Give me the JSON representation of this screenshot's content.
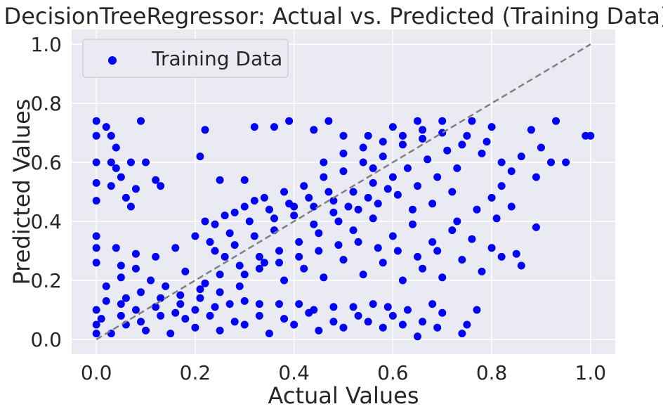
{
  "chart_data": {
    "type": "scatter",
    "title": "DecisionTreeRegressor: Actual vs. Predicted (Training Data)",
    "xlabel": "Actual Values",
    "ylabel": "Predicted Values",
    "xlim": [
      -0.05,
      1.05
    ],
    "ylim": [
      -0.05,
      1.05
    ],
    "xticks": [
      0.0,
      0.2,
      0.4,
      0.6,
      0.8,
      1.0
    ],
    "yticks": [
      0.0,
      0.2,
      0.4,
      0.6,
      0.8,
      1.0
    ],
    "xtick_labels": [
      "0.0",
      "0.2",
      "0.4",
      "0.6",
      "0.8",
      "1.0"
    ],
    "ytick_labels": [
      "0.0",
      "0.2",
      "0.4",
      "0.6",
      "0.8",
      "1.0"
    ],
    "grid": true,
    "legend_position": "top-left",
    "series": [
      {
        "name": "Training Data",
        "color": "#0000ff",
        "points": [
          [
            0.0,
            0.74
          ],
          [
            0.0,
            0.69
          ],
          [
            0.0,
            0.6
          ],
          [
            0.0,
            0.53
          ],
          [
            0.0,
            0.47
          ],
          [
            0.0,
            0.35
          ],
          [
            0.0,
            0.31
          ],
          [
            0.0,
            0.26
          ],
          [
            0.02,
            0.72
          ],
          [
            0.03,
            0.69
          ],
          [
            0.04,
            0.65
          ],
          [
            0.03,
            0.6
          ],
          [
            0.04,
            0.58
          ],
          [
            0.05,
            0.55
          ],
          [
            0.03,
            0.52
          ],
          [
            0.07,
            0.45
          ],
          [
            0.05,
            0.25
          ],
          [
            0.07,
            0.6
          ],
          [
            0.09,
            0.74
          ],
          [
            0.1,
            0.6
          ],
          [
            0.12,
            0.54
          ],
          [
            0.13,
            0.52
          ],
          [
            0.08,
            0.51
          ],
          [
            0.06,
            0.48
          ],
          [
            0.22,
            0.71
          ],
          [
            0.21,
            0.62
          ],
          [
            0.25,
            0.54
          ],
          [
            0.3,
            0.54
          ],
          [
            0.32,
            0.72
          ],
          [
            0.36,
            0.72
          ],
          [
            0.39,
            0.74
          ],
          [
            0.44,
            0.71
          ],
          [
            0.47,
            0.74
          ],
          [
            0.5,
            0.69
          ],
          [
            0.55,
            0.69
          ],
          [
            0.6,
            0.72
          ],
          [
            0.65,
            0.74
          ],
          [
            0.7,
            0.74
          ],
          [
            0.76,
            0.74
          ],
          [
            0.8,
            0.72
          ],
          [
            0.88,
            0.71
          ],
          [
            0.93,
            0.74
          ],
          [
            0.99,
            0.69
          ],
          [
            1.0,
            0.69
          ],
          [
            0.9,
            0.65
          ],
          [
            0.92,
            0.6
          ],
          [
            0.95,
            0.6
          ],
          [
            0.89,
            0.55
          ],
          [
            0.86,
            0.62
          ],
          [
            0.84,
            0.57
          ],
          [
            0.82,
            0.52
          ],
          [
            0.8,
            0.48
          ],
          [
            0.84,
            0.45
          ],
          [
            0.89,
            0.38
          ],
          [
            0.85,
            0.29
          ],
          [
            0.77,
            0.1
          ],
          [
            0.75,
            0.05
          ],
          [
            0.74,
            0.02
          ],
          [
            0.69,
            0.04
          ],
          [
            0.65,
            0.01
          ],
          [
            0.62,
            0.05
          ],
          [
            0.59,
            0.11
          ],
          [
            0.56,
            0.12
          ],
          [
            0.52,
            0.11
          ],
          [
            0.48,
            0.11
          ],
          [
            0.44,
            0.1
          ],
          [
            0.41,
            0.12
          ],
          [
            0.37,
            0.12
          ],
          [
            0.33,
            0.12
          ],
          [
            0.3,
            0.13
          ],
          [
            0.27,
            0.12
          ],
          [
            0.24,
            0.11
          ],
          [
            0.2,
            0.1
          ],
          [
            0.16,
            0.09
          ],
          [
            0.12,
            0.11
          ],
          [
            0.08,
            0.1
          ],
          [
            0.05,
            0.12
          ],
          [
            0.02,
            0.13
          ],
          [
            0.0,
            0.1
          ],
          [
            0.0,
            0.05
          ],
          [
            0.0,
            0.02
          ],
          [
            0.03,
            0.02
          ],
          [
            0.06,
            0.05
          ],
          [
            0.1,
            0.03
          ],
          [
            0.15,
            0.02
          ],
          [
            0.2,
            0.04
          ],
          [
            0.25,
            0.03
          ],
          [
            0.3,
            0.05
          ],
          [
            0.35,
            0.02
          ],
          [
            0.4,
            0.05
          ],
          [
            0.45,
            0.03
          ],
          [
            0.5,
            0.04
          ],
          [
            0.55,
            0.06
          ],
          [
            0.6,
            0.08
          ],
          [
            0.66,
            0.06
          ],
          [
            0.7,
            0.09
          ],
          [
            0.02,
            0.18
          ],
          [
            0.05,
            0.21
          ],
          [
            0.08,
            0.24
          ],
          [
            0.11,
            0.2
          ],
          [
            0.14,
            0.18
          ],
          [
            0.18,
            0.23
          ],
          [
            0.22,
            0.19
          ],
          [
            0.26,
            0.28
          ],
          [
            0.3,
            0.22
          ],
          [
            0.34,
            0.26
          ],
          [
            0.38,
            0.2
          ],
          [
            0.42,
            0.24
          ],
          [
            0.46,
            0.21
          ],
          [
            0.5,
            0.27
          ],
          [
            0.54,
            0.22
          ],
          [
            0.58,
            0.26
          ],
          [
            0.62,
            0.2
          ],
          [
            0.66,
            0.24
          ],
          [
            0.7,
            0.21
          ],
          [
            0.74,
            0.27
          ],
          [
            0.78,
            0.23
          ],
          [
            0.82,
            0.28
          ],
          [
            0.86,
            0.25
          ],
          [
            0.8,
            0.31
          ],
          [
            0.76,
            0.34
          ],
          [
            0.72,
            0.37
          ],
          [
            0.68,
            0.33
          ],
          [
            0.64,
            0.39
          ],
          [
            0.6,
            0.35
          ],
          [
            0.56,
            0.41
          ],
          [
            0.52,
            0.37
          ],
          [
            0.48,
            0.43
          ],
          [
            0.44,
            0.39
          ],
          [
            0.4,
            0.45
          ],
          [
            0.36,
            0.41
          ],
          [
            0.32,
            0.47
          ],
          [
            0.28,
            0.43
          ],
          [
            0.24,
            0.39
          ],
          [
            0.2,
            0.35
          ],
          [
            0.16,
            0.31
          ],
          [
            0.12,
            0.28
          ],
          [
            0.08,
            0.29
          ],
          [
            0.04,
            0.31
          ],
          [
            0.22,
            0.4
          ],
          [
            0.26,
            0.42
          ],
          [
            0.3,
            0.45
          ],
          [
            0.34,
            0.48
          ],
          [
            0.38,
            0.5
          ],
          [
            0.42,
            0.52
          ],
          [
            0.46,
            0.55
          ],
          [
            0.5,
            0.57
          ],
          [
            0.54,
            0.6
          ],
          [
            0.58,
            0.62
          ],
          [
            0.62,
            0.66
          ],
          [
            0.66,
            0.68
          ],
          [
            0.7,
            0.7
          ],
          [
            0.74,
            0.66
          ],
          [
            0.78,
            0.63
          ],
          [
            0.82,
            0.6
          ],
          [
            0.73,
            0.58
          ],
          [
            0.69,
            0.55
          ],
          [
            0.65,
            0.52
          ],
          [
            0.61,
            0.49
          ],
          [
            0.57,
            0.46
          ],
          [
            0.53,
            0.44
          ],
          [
            0.49,
            0.4
          ],
          [
            0.45,
            0.36
          ],
          [
            0.41,
            0.33
          ],
          [
            0.37,
            0.3
          ],
          [
            0.33,
            0.28
          ],
          [
            0.29,
            0.25
          ],
          [
            0.25,
            0.22
          ],
          [
            0.21,
            0.17
          ],
          [
            0.17,
            0.15
          ],
          [
            0.13,
            0.14
          ],
          [
            0.09,
            0.16
          ],
          [
            0.06,
            0.14
          ],
          [
            0.72,
            0.5
          ],
          [
            0.68,
            0.46
          ],
          [
            0.64,
            0.44
          ],
          [
            0.6,
            0.55
          ],
          [
            0.56,
            0.53
          ],
          [
            0.52,
            0.5
          ],
          [
            0.48,
            0.47
          ],
          [
            0.44,
            0.45
          ],
          [
            0.4,
            0.42
          ],
          [
            0.36,
            0.37
          ],
          [
            0.32,
            0.35
          ],
          [
            0.28,
            0.32
          ],
          [
            0.24,
            0.3
          ],
          [
            0.63,
            0.58
          ],
          [
            0.67,
            0.61
          ],
          [
            0.71,
            0.64
          ],
          [
            0.75,
            0.69
          ],
          [
            0.79,
            0.67
          ],
          [
            0.81,
            0.41
          ],
          [
            0.77,
            0.44
          ],
          [
            0.73,
            0.4
          ],
          [
            0.69,
            0.3
          ],
          [
            0.65,
            0.28
          ],
          [
            0.61,
            0.3
          ],
          [
            0.57,
            0.31
          ],
          [
            0.53,
            0.33
          ],
          [
            0.49,
            0.32
          ],
          [
            0.45,
            0.3
          ],
          [
            0.41,
            0.28
          ],
          [
            0.37,
            0.26
          ],
          [
            0.33,
            0.24
          ],
          [
            0.29,
            0.18
          ],
          [
            0.25,
            0.16
          ],
          [
            0.21,
            0.14
          ],
          [
            0.17,
            0.12
          ],
          [
            0.13,
            0.08
          ],
          [
            0.09,
            0.06
          ],
          [
            0.05,
            0.08
          ],
          [
            0.01,
            0.07
          ],
          [
            0.18,
            0.07
          ],
          [
            0.23,
            0.08
          ],
          [
            0.28,
            0.06
          ],
          [
            0.33,
            0.08
          ],
          [
            0.38,
            0.07
          ],
          [
            0.43,
            0.09
          ],
          [
            0.48,
            0.06
          ],
          [
            0.53,
            0.08
          ],
          [
            0.58,
            0.04
          ],
          [
            0.63,
            0.1
          ],
          [
            0.68,
            0.12
          ],
          [
            0.46,
            0.6
          ],
          [
            0.5,
            0.63
          ],
          [
            0.54,
            0.65
          ],
          [
            0.58,
            0.67
          ],
          [
            0.62,
            0.69
          ],
          [
            0.66,
            0.71
          ],
          [
            0.56,
            0.58
          ],
          [
            0.59,
            0.51
          ],
          [
            0.55,
            0.48
          ],
          [
            0.51,
            0.45
          ],
          [
            0.47,
            0.5
          ],
          [
            0.43,
            0.48
          ],
          [
            0.39,
            0.46
          ],
          [
            0.35,
            0.44
          ],
          [
            0.31,
            0.4
          ],
          [
            0.27,
            0.36
          ],
          [
            0.23,
            0.33
          ]
        ]
      }
    ],
    "reference_line": {
      "from": [
        0.0,
        0.0
      ],
      "to": [
        1.0,
        1.0
      ],
      "color": "#808080",
      "style": "dashed"
    }
  }
}
